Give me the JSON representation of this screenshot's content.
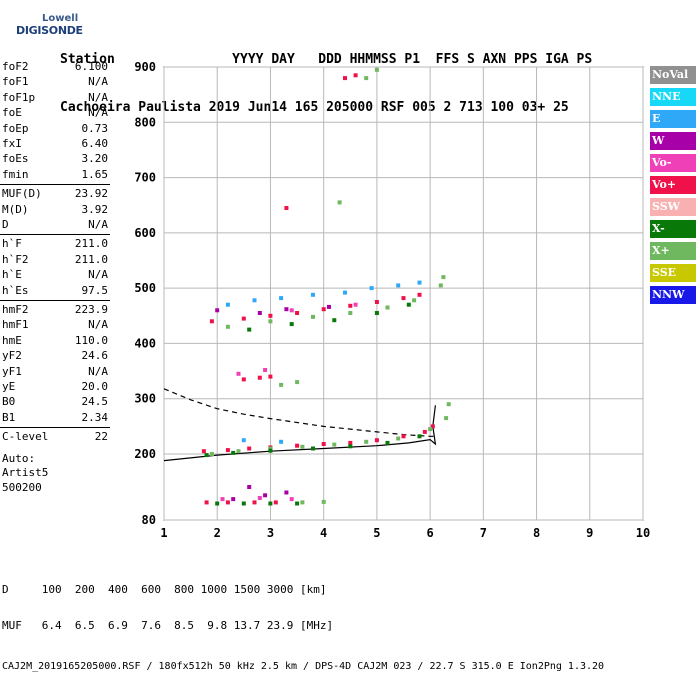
{
  "logo": {
    "line1": "Lowell",
    "line2": "DIGISONDE"
  },
  "header": {
    "line1": "Station               YYYY DAY   DDD HHMMSS P1  FFS S AXN PPS IGA PS",
    "line2": "Cachoeira Paulista 2019 Jun14 165 205000 RSF 005 2 713 100 03+ 25"
  },
  "params": [
    {
      "k": "foF2",
      "v": "6.100"
    },
    {
      "k": "foF1",
      "v": "N/A"
    },
    {
      "k": "foF1p",
      "v": "N/A"
    },
    {
      "k": "foE",
      "v": "N/A"
    },
    {
      "k": "foEp",
      "v": "0.73"
    },
    {
      "k": "fxI",
      "v": "6.40"
    },
    {
      "k": "foEs",
      "v": "3.20"
    },
    {
      "k": "fmin",
      "v": "1.65"
    },
    {
      "k": "MUF(D)",
      "v": "23.92"
    },
    {
      "k": "M(D)",
      "v": "3.92"
    },
    {
      "k": "D",
      "v": "N/A"
    },
    {
      "k": "h`F",
      "v": "211.0"
    },
    {
      "k": "h`F2",
      "v": "211.0"
    },
    {
      "k": "h`E",
      "v": "N/A"
    },
    {
      "k": "h`Es",
      "v": "97.5"
    },
    {
      "k": "hmF2",
      "v": "223.9"
    },
    {
      "k": "hmF1",
      "v": "N/A"
    },
    {
      "k": "hmE",
      "v": "110.0"
    },
    {
      "k": "yF2",
      "v": "24.6"
    },
    {
      "k": "yF1",
      "v": "N/A"
    },
    {
      "k": "yE",
      "v": "20.0"
    },
    {
      "k": "B0",
      "v": "24.5"
    },
    {
      "k": "B1",
      "v": "2.34"
    },
    {
      "k": "C-level",
      "v": "22"
    }
  ],
  "auto": {
    "line1": "Auto:",
    "line2": "Artist5",
    "line3": "500200"
  },
  "legend": [
    {
      "label": "NoVal",
      "color": "#909090"
    },
    {
      "label": "NNE",
      "color": "#18d8f8"
    },
    {
      "label": "E",
      "color": "#30a8f8"
    },
    {
      "label": "W",
      "color": "#a800a8"
    },
    {
      "label": "Vo-",
      "color": "#f040b8"
    },
    {
      "label": "Vo+",
      "color": "#f0104a"
    },
    {
      "label": "SSW",
      "color": "#f8b0b0"
    },
    {
      "label": "X-",
      "color": "#087808"
    },
    {
      "label": "X+",
      "color": "#70b860"
    },
    {
      "label": "SSE",
      "color": "#c8c800"
    },
    {
      "label": "NNW",
      "color": "#1818e8"
    }
  ],
  "footer": {
    "row1": "D     100  200  400  600  800 1000 1500 3000 [km]",
    "row2": "MUF   6.4  6.5  6.9  7.6  8.5  9.8 13.7 23.9 [MHz]",
    "row3": "CAJ2M_2019165205000.RSF / 180fx512h 50 kHz 2.5 km / DPS-4D CAJ2M 023 / 22.7 S 315.0 E Ion2Png 1.3.20"
  },
  "chart_data": {
    "type": "scatter",
    "xlim": [
      1,
      10
    ],
    "ylim": [
      80,
      900
    ],
    "x_ticks": [
      1,
      2,
      3,
      4,
      5,
      6,
      7,
      8,
      9,
      10
    ],
    "y_ticks": [
      80,
      200,
      300,
      400,
      500,
      600,
      700,
      800,
      900
    ],
    "grid": true,
    "series": [
      {
        "name": "Vo+",
        "points": [
          [
            1.75,
            205
          ],
          [
            2.2,
            207
          ],
          [
            2.6,
            210
          ],
          [
            3.0,
            212
          ],
          [
            3.5,
            215
          ],
          [
            4.0,
            218
          ],
          [
            4.5,
            220
          ],
          [
            5.0,
            225
          ],
          [
            5.5,
            232
          ],
          [
            5.9,
            240
          ],
          [
            6.05,
            250
          ],
          [
            1.9,
            440
          ],
          [
            2.5,
            445
          ],
          [
            3.0,
            450
          ],
          [
            3.5,
            455
          ],
          [
            4.0,
            462
          ],
          [
            4.5,
            468
          ],
          [
            5.0,
            475
          ],
          [
            5.5,
            482
          ],
          [
            5.8,
            488
          ],
          [
            2.5,
            335
          ],
          [
            2.8,
            338
          ],
          [
            3.0,
            340
          ],
          [
            4.4,
            880
          ],
          [
            4.6,
            885
          ],
          [
            3.3,
            645
          ],
          [
            1.8,
            112
          ],
          [
            2.2,
            112
          ],
          [
            2.7,
            112
          ],
          [
            3.1,
            112
          ]
        ]
      },
      {
        "name": "X+",
        "points": [
          [
            1.9,
            200
          ],
          [
            2.4,
            205
          ],
          [
            3.0,
            210
          ],
          [
            3.6,
            213
          ],
          [
            4.2,
            217
          ],
          [
            4.8,
            222
          ],
          [
            5.4,
            228
          ],
          [
            6.0,
            245
          ],
          [
            6.3,
            265
          ],
          [
            6.35,
            290
          ],
          [
            2.2,
            430
          ],
          [
            3.0,
            440
          ],
          [
            3.8,
            448
          ],
          [
            4.5,
            455
          ],
          [
            5.2,
            465
          ],
          [
            5.7,
            478
          ],
          [
            6.2,
            505
          ],
          [
            6.25,
            520
          ],
          [
            3.2,
            325
          ],
          [
            3.5,
            330
          ],
          [
            4.8,
            880
          ],
          [
            5.0,
            895
          ],
          [
            4.3,
            655
          ],
          [
            3.6,
            112
          ],
          [
            4.0,
            113
          ]
        ]
      },
      {
        "name": "X-",
        "points": [
          [
            1.8,
            198
          ],
          [
            2.3,
            202
          ],
          [
            3.0,
            206
          ],
          [
            3.8,
            210
          ],
          [
            4.5,
            214
          ],
          [
            5.2,
            220
          ],
          [
            5.8,
            232
          ],
          [
            2.6,
            425
          ],
          [
            3.4,
            435
          ],
          [
            4.2,
            442
          ],
          [
            5.0,
            455
          ],
          [
            5.6,
            470
          ],
          [
            2.0,
            110
          ],
          [
            2.5,
            110
          ],
          [
            3.0,
            110
          ],
          [
            3.5,
            110
          ]
        ]
      },
      {
        "name": "E",
        "points": [
          [
            2.2,
            470
          ],
          [
            2.7,
            478
          ],
          [
            3.2,
            482
          ],
          [
            3.8,
            488
          ],
          [
            4.4,
            492
          ],
          [
            4.9,
            500
          ],
          [
            5.4,
            505
          ],
          [
            5.8,
            510
          ],
          [
            2.5,
            225
          ],
          [
            3.2,
            222
          ]
        ]
      },
      {
        "name": "W",
        "points": [
          [
            2.0,
            460
          ],
          [
            2.8,
            455
          ],
          [
            3.3,
            462
          ],
          [
            4.1,
            466
          ],
          [
            2.3,
            118
          ],
          [
            2.9,
            125
          ],
          [
            3.3,
            130
          ],
          [
            2.6,
            140
          ]
        ]
      },
      {
        "name": "Vo-",
        "points": [
          [
            2.4,
            345
          ],
          [
            2.9,
            352
          ],
          [
            3.4,
            460
          ],
          [
            4.6,
            470
          ],
          [
            2.1,
            118
          ],
          [
            2.8,
            120
          ],
          [
            3.4,
            118
          ]
        ]
      }
    ],
    "model_curves": [
      {
        "name": "profile",
        "style": "solid",
        "points": [
          [
            1.0,
            188
          ],
          [
            2.0,
            198
          ],
          [
            3.0,
            205
          ],
          [
            4.0,
            210
          ],
          [
            5.0,
            215
          ],
          [
            5.6,
            220
          ],
          [
            6.0,
            226
          ],
          [
            6.1,
            218
          ],
          [
            6.05,
            250
          ],
          [
            6.1,
            288
          ]
        ]
      },
      {
        "name": "trace",
        "style": "dashed",
        "points": [
          [
            1.0,
            318
          ],
          [
            1.5,
            298
          ],
          [
            2.0,
            282
          ],
          [
            2.5,
            272
          ],
          [
            3.0,
            264
          ],
          [
            3.5,
            257
          ],
          [
            4.0,
            250
          ],
          [
            4.5,
            245
          ],
          [
            5.0,
            240
          ],
          [
            5.5,
            235
          ],
          [
            6.0,
            232
          ],
          [
            6.1,
            232
          ]
        ]
      }
    ]
  }
}
